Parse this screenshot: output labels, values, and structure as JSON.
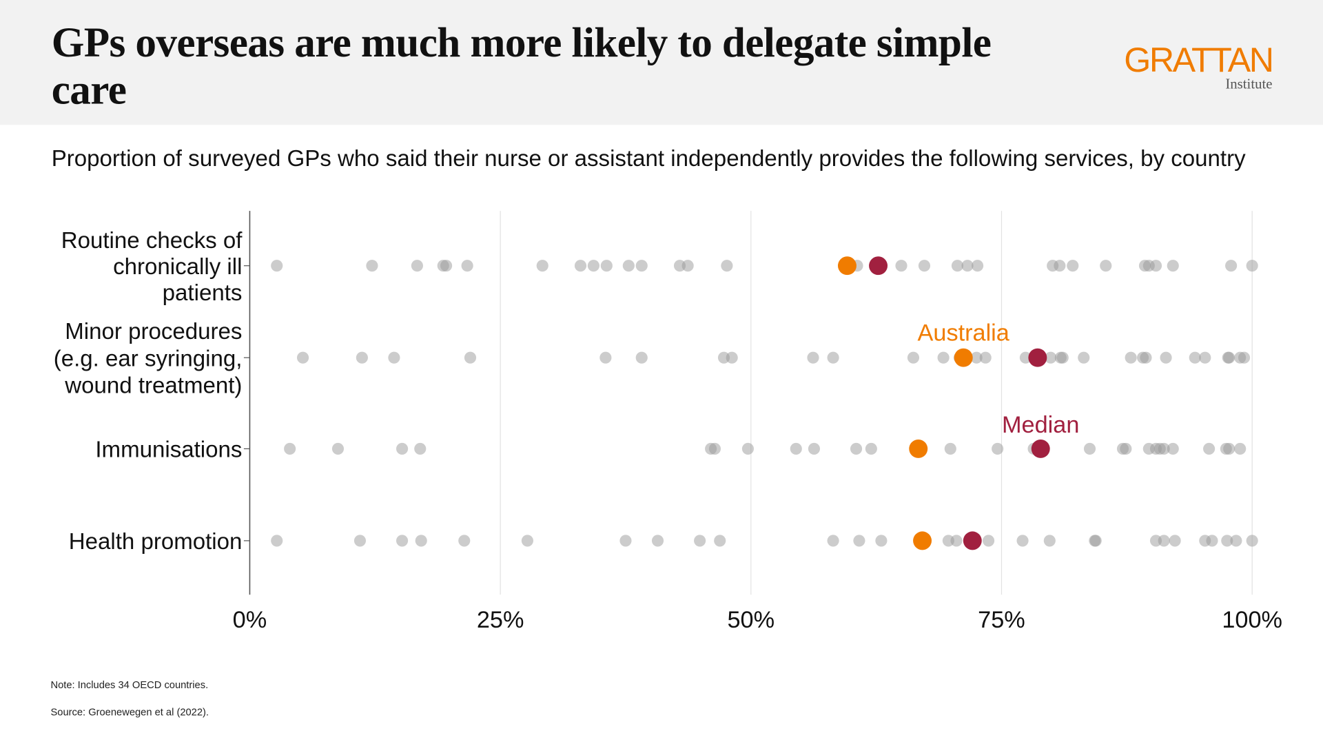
{
  "header": {
    "title": "GPs overseas are much more likely to delegate simple care",
    "logo": "GRATTAN",
    "logo_sub": "Institute"
  },
  "subtitle": "Proportion of surveyed GPs who said their nurse or assistant independently provides the following services, by country",
  "notes": {
    "note": "Note: Includes 34 OECD countries.",
    "source": "Source: Groenewegen et al (2022)."
  },
  "colors": {
    "other": "#9a9a9a",
    "australia": "#f07c00",
    "median": "#a1203f"
  },
  "chart_data": {
    "type": "scatter",
    "title": "",
    "xlim": [
      0,
      100
    ],
    "x_ticks": [
      "0%",
      "25%",
      "50%",
      "75%",
      "100%"
    ],
    "x_tick_values": [
      0,
      25,
      50,
      75,
      100
    ],
    "grid": "vertical",
    "annotations": {
      "australia": "Australia",
      "median": "Median"
    },
    "categories": [
      {
        "label": "Routine checks of chronically ill patients",
        "label_lines": [
          "Routine checks of",
          "chronically ill",
          "patients"
        ],
        "countries": [
          2.7,
          12.2,
          16.7,
          19.3,
          19.6,
          21.7,
          29.2,
          33.0,
          34.3,
          35.6,
          37.8,
          39.1,
          42.9,
          43.7,
          47.6,
          60.6,
          65.0,
          67.3,
          70.6,
          71.6,
          72.6,
          80.1,
          80.8,
          82.1,
          85.4,
          89.3,
          89.7,
          90.4,
          92.1,
          97.9,
          100
        ],
        "australia": 59.6,
        "median": 62.7
      },
      {
        "label": "Minor procedures (e.g. ear syringing, wound treatment)",
        "label_lines": [
          "Minor procedures",
          "(e.g. ear syringing,",
          "wound treatment)"
        ],
        "countries": [
          5.3,
          11.2,
          14.4,
          22.0,
          35.5,
          39.1,
          47.3,
          48.1,
          56.2,
          58.2,
          66.2,
          69.2,
          70.8,
          72.5,
          73.4,
          77.4,
          79.9,
          80.9,
          81.1,
          83.2,
          87.9,
          89.1,
          89.4,
          91.4,
          94.3,
          95.3,
          97.6,
          97.7,
          98.8,
          99.2
        ],
        "australia": 71.2,
        "median": 78.6
      },
      {
        "label": "Immunisations",
        "label_lines": [
          "Immunisations"
        ],
        "countries": [
          4.0,
          8.8,
          15.2,
          17.0,
          46.0,
          46.4,
          49.7,
          54.5,
          56.3,
          60.5,
          62.0,
          69.9,
          74.6,
          78.2,
          83.8,
          87.1,
          87.4,
          89.7,
          90.4,
          90.8,
          91.2,
          92.1,
          95.7,
          97.4,
          97.7,
          98.8
        ],
        "australia": 66.7,
        "median": 78.9
      },
      {
        "label": "Health promotion",
        "label_lines": [
          "Health promotion"
        ],
        "countries": [
          2.7,
          11.0,
          15.2,
          17.1,
          21.4,
          27.7,
          37.5,
          40.7,
          44.9,
          46.9,
          58.2,
          60.8,
          63.0,
          69.7,
          70.5,
          73.7,
          77.1,
          79.8,
          84.3,
          84.4,
          90.4,
          91.2,
          92.3,
          95.3,
          96.0,
          97.5,
          98.4,
          100
        ],
        "australia": 67.1,
        "median": 72.1
      }
    ]
  }
}
